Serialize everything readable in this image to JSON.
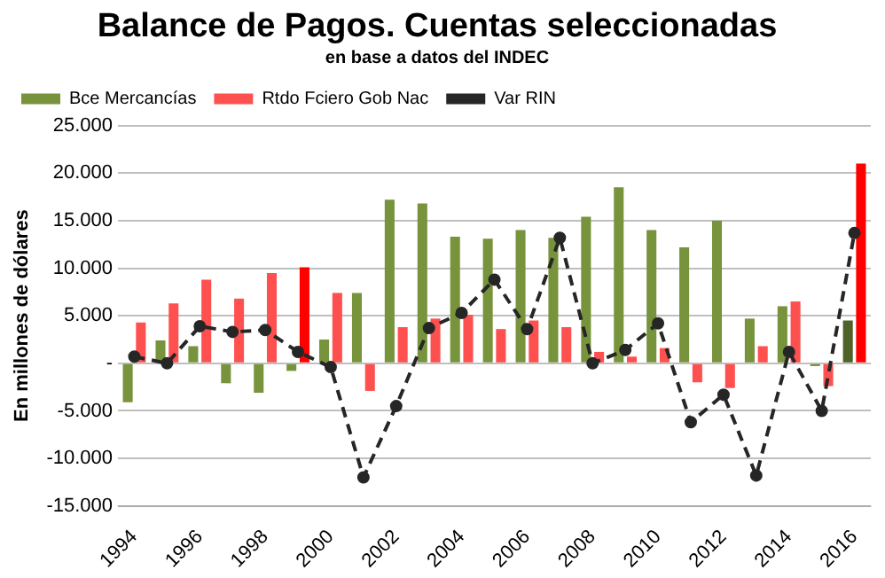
{
  "chart_data": {
    "type": "bar",
    "title": "Balance de Pagos. Cuentas seleccionadas",
    "subtitle": "en base a datos del INDEC",
    "ylabel": "En millones de dólares",
    "categories": [
      "1994",
      null,
      "1996",
      null,
      "1998",
      null,
      "2000",
      null,
      "2002",
      null,
      "2004",
      null,
      "2006",
      null,
      "2008",
      null,
      "2010",
      null,
      "2012",
      null,
      "2014",
      null,
      "2016"
    ],
    "series": [
      {
        "name": "Bce Mercancías",
        "color": "#77933c",
        "colors": [
          "#77933c",
          "#77933c",
          "#77933c",
          "#77933c",
          "#77933c",
          "#77933c",
          "#77933c",
          "#77933c",
          "#77933c",
          "#77933c",
          "#77933c",
          "#77933c",
          "#77933c",
          "#77933c",
          "#77933c",
          "#77933c",
          "#77933c",
          "#77933c",
          "#77933c",
          "#77933c",
          "#77933c",
          "#77933c",
          "#4f6228"
        ],
        "values": [
          -4100,
          2400,
          1800,
          -2100,
          -3100,
          -800,
          2500,
          7400,
          17200,
          16800,
          13300,
          13100,
          14000,
          13200,
          15400,
          18500,
          14000,
          12200,
          15000,
          4700,
          6000,
          -300,
          4500
        ]
      },
      {
        "name": "Rtdo Fciero Gob Nac",
        "color": "#ff5050",
        "colors": [
          "#ff5050",
          "#ff5050",
          "#ff5050",
          "#ff5050",
          "#ff5050",
          "#ff0000",
          "#ff5050",
          "#ff5050",
          "#ff5050",
          "#ff5050",
          "#ff5050",
          "#ff5050",
          "#ff5050",
          "#ff5050",
          "#ff5050",
          "#ff5050",
          "#ff5050",
          "#ff5050",
          "#ff5050",
          "#ff5050",
          "#ff5050",
          "#ff5050",
          "#ff0000"
        ],
        "values": [
          4300,
          6300,
          8800,
          6800,
          9500,
          10100,
          7400,
          -2900,
          3800,
          4700,
          5100,
          3600,
          4500,
          3800,
          1200,
          700,
          1600,
          -2000,
          -2600,
          1800,
          6500,
          -2400,
          21000
        ]
      },
      {
        "name": "Var RIN",
        "type": "line",
        "color": "#262626",
        "marker": "circle",
        "line_style": "dashed",
        "values": [
          700,
          0,
          3900,
          3300,
          3500,
          1200,
          -400,
          -12000,
          -4500,
          3700,
          5300,
          8800,
          3600,
          13200,
          0,
          1400,
          4200,
          -6200,
          -3300,
          -11800,
          1200,
          -5000,
          13700
        ]
      }
    ],
    "ylim": [
      -15000,
      25000
    ],
    "yticks": [
      {
        "value": -15000,
        "label": "-15.000"
      },
      {
        "value": -10000,
        "label": "-10.000"
      },
      {
        "value": -5000,
        "label": "-5.000"
      },
      {
        "value": 0,
        "label": "-"
      },
      {
        "value": 5000,
        "label": "5.000"
      },
      {
        "value": 10000,
        "label": "10.000"
      },
      {
        "value": 15000,
        "label": "15.000"
      },
      {
        "value": 20000,
        "label": "20.000"
      },
      {
        "value": 25000,
        "label": "25.000"
      }
    ],
    "grid": "y",
    "legend": "top left"
  }
}
